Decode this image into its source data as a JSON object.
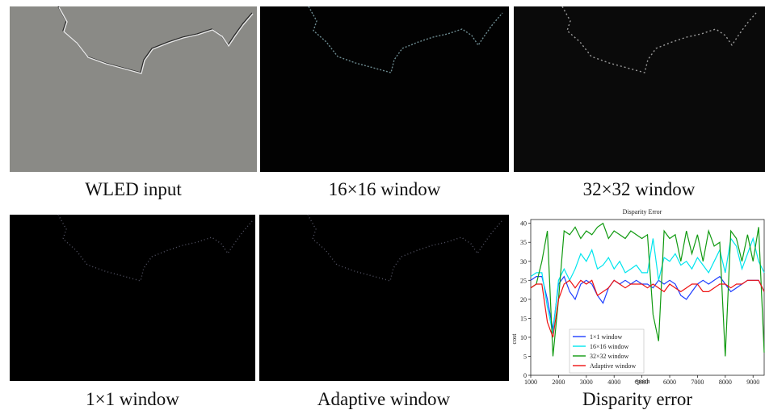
{
  "panels": [
    {
      "caption": "WLED input"
    },
    {
      "caption": "16×16 window"
    },
    {
      "caption": "32×32 window"
    },
    {
      "caption": "1×1 window"
    },
    {
      "caption": "Adaptive window"
    },
    {
      "caption": "Disparity error"
    }
  ],
  "chart_data": {
    "type": "line",
    "title": "Disparity Error",
    "x_label": "epoch",
    "y_label": "cost",
    "x": [
      1000,
      1200,
      1400,
      1600,
      1800,
      2000,
      2200,
      2400,
      2600,
      2800,
      3000,
      3200,
      3400,
      3600,
      3800,
      4000,
      4200,
      4400,
      4600,
      4800,
      5000,
      5200,
      5400,
      5600,
      5800,
      6000,
      6200,
      6400,
      6600,
      6800,
      7000,
      7200,
      7400,
      7600,
      7800,
      8000,
      8200,
      8400,
      8600,
      8800,
      9000,
      9200,
      9400
    ],
    "xlim": [
      1000,
      9400
    ],
    "xticks": [
      1000,
      2000,
      3000,
      4000,
      5000,
      6000,
      7000,
      8000,
      9000
    ],
    "ylim": [
      0,
      41
    ],
    "yticks": [
      0,
      5,
      10,
      15,
      20,
      25,
      30,
      35,
      40
    ],
    "legend": "lower left",
    "series": [
      {
        "name": "1×1 window",
        "color": "#1f3fff",
        "values": [
          25,
          26,
          26,
          20,
          12,
          24,
          26,
          22,
          20,
          24,
          25,
          24,
          21,
          19,
          23,
          25,
          24,
          25,
          24,
          25,
          24,
          24,
          23,
          25,
          24,
          25,
          24,
          21,
          20,
          22,
          24,
          25,
          24,
          25,
          26,
          24,
          22,
          23,
          24,
          25,
          25,
          25,
          22
        ]
      },
      {
        "name": "16×16 window",
        "color": "#00e5ee",
        "values": [
          26,
          27,
          27,
          18,
          11,
          25,
          28,
          25,
          28,
          32,
          30,
          33,
          28,
          29,
          31,
          28,
          30,
          27,
          28,
          29,
          27,
          27,
          36,
          25,
          31,
          30,
          32,
          29,
          30,
          28,
          31,
          29,
          27,
          30,
          33,
          27,
          36,
          34,
          28,
          32,
          36,
          30,
          27
        ]
      },
      {
        "name": "32×32 window",
        "color": "#109a10",
        "values": [
          23,
          24,
          30,
          38,
          5,
          20,
          38,
          37,
          39,
          36,
          38,
          37,
          39,
          40,
          36,
          38,
          37,
          36,
          38,
          37,
          36,
          37,
          16,
          9,
          38,
          36,
          37,
          30,
          38,
          32,
          37,
          30,
          38,
          34,
          35,
          5,
          38,
          36,
          30,
          37,
          30,
          39,
          6
        ]
      },
      {
        "name": "Adaptive window",
        "color": "#ee1111",
        "values": [
          23,
          24,
          24,
          14,
          10,
          20,
          24,
          25,
          23,
          25,
          24,
          25,
          21,
          22,
          23,
          25,
          24,
          23,
          24,
          24,
          24,
          23,
          24,
          23,
          22,
          24,
          23,
          22,
          23,
          24,
          24,
          22,
          22,
          23,
          24,
          24,
          23,
          24,
          24,
          25,
          25,
          25,
          22
        ]
      }
    ]
  }
}
